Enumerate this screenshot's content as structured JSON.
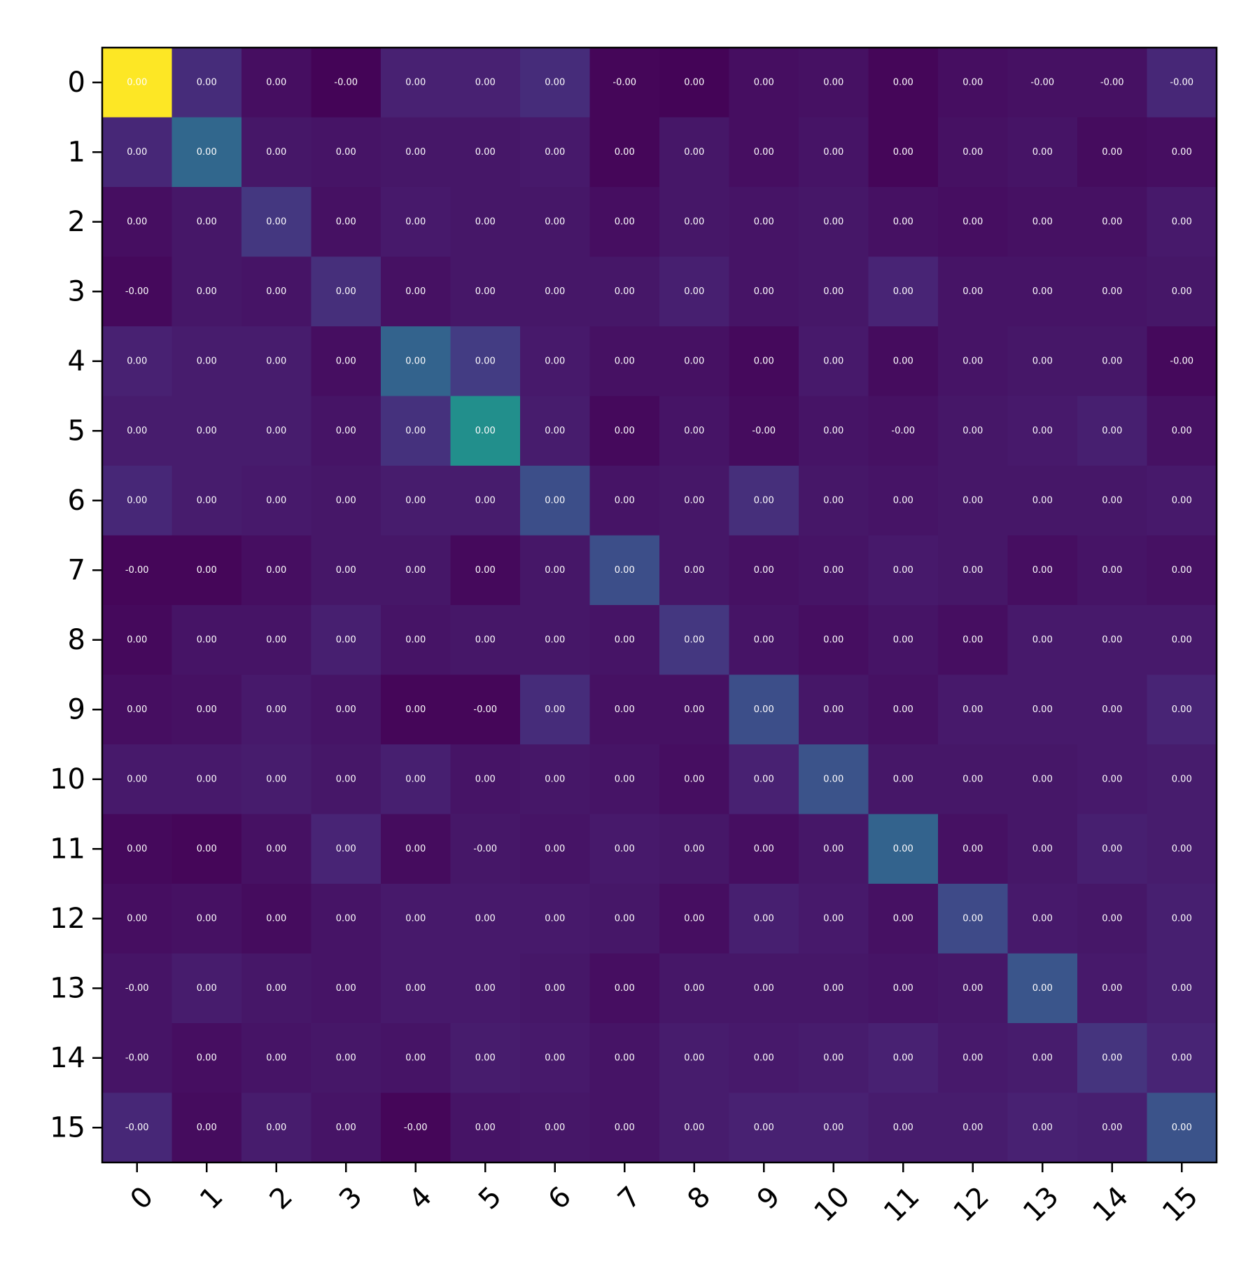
{
  "chart_data": {
    "type": "heatmap",
    "title": "",
    "xlabel": "",
    "ylabel": "",
    "x_categories": [
      "0",
      "1",
      "2",
      "3",
      "4",
      "5",
      "6",
      "7",
      "8",
      "9",
      "10",
      "11",
      "12",
      "13",
      "14",
      "15"
    ],
    "y_categories": [
      "0",
      "1",
      "2",
      "3",
      "4",
      "5",
      "6",
      "7",
      "8",
      "9",
      "10",
      "11",
      "12",
      "13",
      "14",
      "15"
    ],
    "x_tick_rotation_deg": 45,
    "colormap": "viridis",
    "grid": false,
    "legend": "none",
    "intensity": [
      [
        1.0,
        0.16,
        0.05,
        0.01,
        0.12,
        0.12,
        0.16,
        0.02,
        0.01,
        0.05,
        0.06,
        0.02,
        0.05,
        0.06,
        0.06,
        0.14
      ],
      [
        0.14,
        0.42,
        0.08,
        0.07,
        0.08,
        0.08,
        0.09,
        0.02,
        0.08,
        0.05,
        0.07,
        0.02,
        0.06,
        0.07,
        0.04,
        0.05
      ],
      [
        0.05,
        0.08,
        0.2,
        0.06,
        0.09,
        0.08,
        0.08,
        0.05,
        0.08,
        0.07,
        0.08,
        0.06,
        0.05,
        0.06,
        0.06,
        0.09
      ],
      [
        0.03,
        0.08,
        0.07,
        0.17,
        0.06,
        0.08,
        0.08,
        0.08,
        0.11,
        0.07,
        0.08,
        0.13,
        0.07,
        0.07,
        0.07,
        0.08
      ],
      [
        0.12,
        0.1,
        0.1,
        0.05,
        0.4,
        0.22,
        0.09,
        0.06,
        0.06,
        0.03,
        0.09,
        0.04,
        0.07,
        0.08,
        0.08,
        0.03
      ],
      [
        0.1,
        0.1,
        0.1,
        0.07,
        0.18,
        0.62,
        0.1,
        0.03,
        0.07,
        0.04,
        0.07,
        0.06,
        0.08,
        0.09,
        0.11,
        0.06
      ],
      [
        0.14,
        0.1,
        0.09,
        0.08,
        0.1,
        0.1,
        0.3,
        0.07,
        0.08,
        0.17,
        0.08,
        0.07,
        0.08,
        0.08,
        0.08,
        0.09
      ],
      [
        0.02,
        0.02,
        0.05,
        0.08,
        0.08,
        0.03,
        0.08,
        0.3,
        0.08,
        0.06,
        0.07,
        0.09,
        0.08,
        0.05,
        0.07,
        0.06
      ],
      [
        0.03,
        0.07,
        0.07,
        0.11,
        0.07,
        0.08,
        0.08,
        0.07,
        0.2,
        0.07,
        0.05,
        0.07,
        0.05,
        0.09,
        0.09,
        0.09
      ],
      [
        0.05,
        0.06,
        0.09,
        0.07,
        0.02,
        0.02,
        0.16,
        0.06,
        0.06,
        0.3,
        0.08,
        0.06,
        0.09,
        0.09,
        0.09,
        0.13
      ],
      [
        0.09,
        0.09,
        0.1,
        0.08,
        0.11,
        0.07,
        0.08,
        0.07,
        0.05,
        0.12,
        0.32,
        0.08,
        0.08,
        0.08,
        0.09,
        0.1
      ],
      [
        0.03,
        0.02,
        0.06,
        0.13,
        0.04,
        0.08,
        0.07,
        0.09,
        0.08,
        0.05,
        0.08,
        0.4,
        0.06,
        0.08,
        0.11,
        0.1
      ],
      [
        0.05,
        0.06,
        0.04,
        0.07,
        0.09,
        0.09,
        0.09,
        0.08,
        0.05,
        0.11,
        0.09,
        0.06,
        0.28,
        0.09,
        0.08,
        0.11
      ],
      [
        0.07,
        0.1,
        0.08,
        0.07,
        0.09,
        0.09,
        0.08,
        0.05,
        0.08,
        0.08,
        0.08,
        0.07,
        0.08,
        0.33,
        0.09,
        0.11
      ],
      [
        0.07,
        0.05,
        0.07,
        0.08,
        0.07,
        0.1,
        0.09,
        0.07,
        0.1,
        0.09,
        0.1,
        0.12,
        0.09,
        0.1,
        0.19,
        0.13
      ],
      [
        0.14,
        0.04,
        0.1,
        0.07,
        0.02,
        0.07,
        0.08,
        0.07,
        0.1,
        0.12,
        0.12,
        0.1,
        0.1,
        0.12,
        0.11,
        0.32
      ]
    ],
    "cell_labels": [
      [
        "0.00",
        "0.00",
        "0.00",
        "-0.00",
        "0.00",
        "0.00",
        "0.00",
        "-0.00",
        "0.00",
        "0.00",
        "0.00",
        "0.00",
        "0.00",
        "-0.00",
        "-0.00",
        "-0.00"
      ],
      [
        "0.00",
        "0.00",
        "0.00",
        "0.00",
        "0.00",
        "0.00",
        "0.00",
        "0.00",
        "0.00",
        "0.00",
        "0.00",
        "0.00",
        "0.00",
        "0.00",
        "0.00",
        "0.00"
      ],
      [
        "0.00",
        "0.00",
        "0.00",
        "0.00",
        "0.00",
        "0.00",
        "0.00",
        "0.00",
        "0.00",
        "0.00",
        "0.00",
        "0.00",
        "0.00",
        "0.00",
        "0.00",
        "0.00"
      ],
      [
        "-0.00",
        "0.00",
        "0.00",
        "0.00",
        "0.00",
        "0.00",
        "0.00",
        "0.00",
        "0.00",
        "0.00",
        "0.00",
        "0.00",
        "0.00",
        "0.00",
        "0.00",
        "0.00"
      ],
      [
        "0.00",
        "0.00",
        "0.00",
        "0.00",
        "0.00",
        "0.00",
        "0.00",
        "0.00",
        "0.00",
        "0.00",
        "0.00",
        "0.00",
        "0.00",
        "0.00",
        "0.00",
        "-0.00"
      ],
      [
        "0.00",
        "0.00",
        "0.00",
        "0.00",
        "0.00",
        "0.00",
        "0.00",
        "0.00",
        "0.00",
        "-0.00",
        "0.00",
        "-0.00",
        "0.00",
        "0.00",
        "0.00",
        "0.00"
      ],
      [
        "0.00",
        "0.00",
        "0.00",
        "0.00",
        "0.00",
        "0.00",
        "0.00",
        "0.00",
        "0.00",
        "0.00",
        "0.00",
        "0.00",
        "0.00",
        "0.00",
        "0.00",
        "0.00"
      ],
      [
        "-0.00",
        "0.00",
        "0.00",
        "0.00",
        "0.00",
        "0.00",
        "0.00",
        "0.00",
        "0.00",
        "0.00",
        "0.00",
        "0.00",
        "0.00",
        "0.00",
        "0.00",
        "0.00"
      ],
      [
        "0.00",
        "0.00",
        "0.00",
        "0.00",
        "0.00",
        "0.00",
        "0.00",
        "0.00",
        "0.00",
        "0.00",
        "0.00",
        "0.00",
        "0.00",
        "0.00",
        "0.00",
        "0.00"
      ],
      [
        "0.00",
        "0.00",
        "0.00",
        "0.00",
        "0.00",
        "-0.00",
        "0.00",
        "0.00",
        "0.00",
        "0.00",
        "0.00",
        "0.00",
        "0.00",
        "0.00",
        "0.00",
        "0.00"
      ],
      [
        "0.00",
        "0.00",
        "0.00",
        "0.00",
        "0.00",
        "0.00",
        "0.00",
        "0.00",
        "0.00",
        "0.00",
        "0.00",
        "0.00",
        "0.00",
        "0.00",
        "0.00",
        "0.00"
      ],
      [
        "0.00",
        "0.00",
        "0.00",
        "0.00",
        "0.00",
        "-0.00",
        "0.00",
        "0.00",
        "0.00",
        "0.00",
        "0.00",
        "0.00",
        "0.00",
        "0.00",
        "0.00",
        "0.00"
      ],
      [
        "0.00",
        "0.00",
        "0.00",
        "0.00",
        "0.00",
        "0.00",
        "0.00",
        "0.00",
        "0.00",
        "0.00",
        "0.00",
        "0.00",
        "0.00",
        "0.00",
        "0.00",
        "0.00"
      ],
      [
        "-0.00",
        "0.00",
        "0.00",
        "0.00",
        "0.00",
        "0.00",
        "0.00",
        "0.00",
        "0.00",
        "0.00",
        "0.00",
        "0.00",
        "0.00",
        "0.00",
        "0.00",
        "0.00"
      ],
      [
        "-0.00",
        "0.00",
        "0.00",
        "0.00",
        "0.00",
        "0.00",
        "0.00",
        "0.00",
        "0.00",
        "0.00",
        "0.00",
        "0.00",
        "0.00",
        "0.00",
        "0.00",
        "0.00"
      ],
      [
        "-0.00",
        "0.00",
        "0.00",
        "0.00",
        "-0.00",
        "0.00",
        "0.00",
        "0.00",
        "0.00",
        "0.00",
        "0.00",
        "0.00",
        "0.00",
        "0.00",
        "0.00",
        "0.00"
      ]
    ]
  }
}
